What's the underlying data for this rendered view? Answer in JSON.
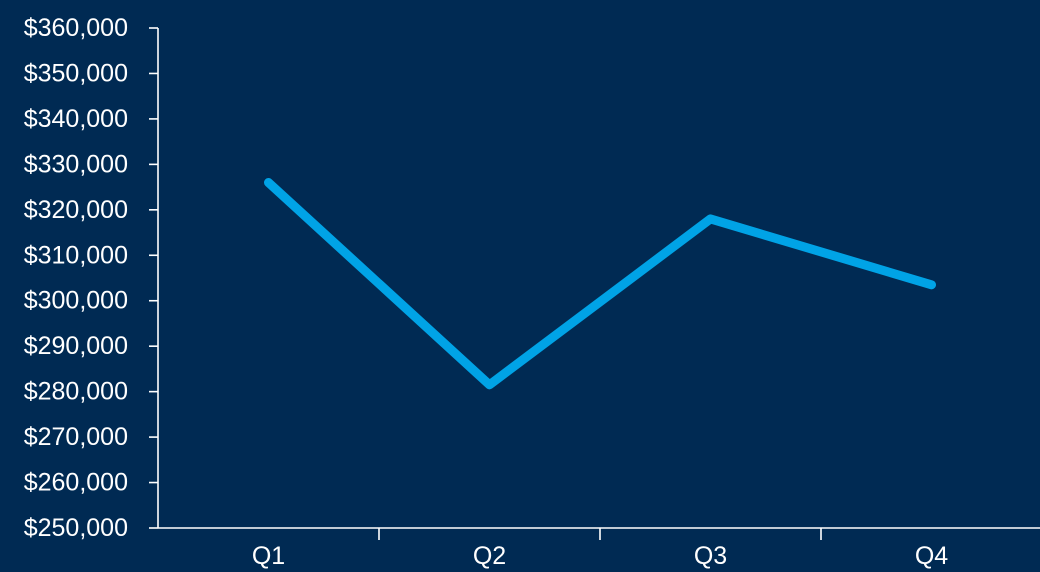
{
  "chart_data": {
    "type": "line",
    "title": "",
    "xlabel": "",
    "ylabel": "",
    "categories": [
      "Q1",
      "Q2",
      "Q3",
      "Q4"
    ],
    "series": [
      {
        "values": [
          326000,
          281500,
          318000,
          303500
        ],
        "color": "#00a3e6"
      }
    ],
    "ylim": [
      250000,
      360000
    ],
    "y_ticks": [
      250000,
      260000,
      270000,
      280000,
      290000,
      300000,
      310000,
      320000,
      330000,
      340000,
      350000,
      360000
    ],
    "y_tick_labels": [
      "$250,000",
      "$260,000",
      "$270,000",
      "$280,000",
      "$290,000",
      "$300,000",
      "$310,000",
      "$320,000",
      "$330,000",
      "$340,000",
      "$350,000",
      "$360,000"
    ],
    "grid": false,
    "background_color": "#002a53",
    "axis_color": "#ffffff",
    "text_color": "#ffffff"
  }
}
